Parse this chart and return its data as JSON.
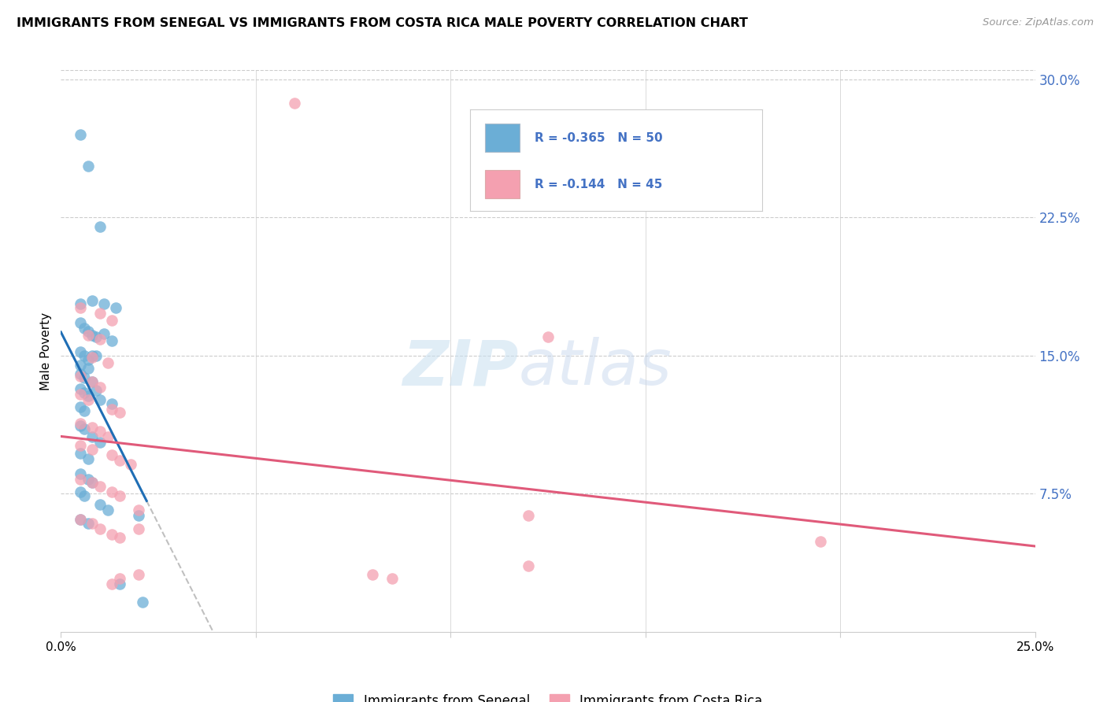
{
  "title": "IMMIGRANTS FROM SENEGAL VS IMMIGRANTS FROM COSTA RICA MALE POVERTY CORRELATION CHART",
  "source": "Source: ZipAtlas.com",
  "ylabel": "Male Poverty",
  "xlim": [
    0.0,
    0.25
  ],
  "ylim": [
    0.0,
    0.305
  ],
  "xticks": [
    0.0,
    0.05,
    0.1,
    0.15,
    0.2,
    0.25
  ],
  "xticklabels": [
    "0.0%",
    "",
    "",
    "",
    "",
    "25.0%"
  ],
  "yticks_right": [
    0.075,
    0.15,
    0.225,
    0.3
  ],
  "yticklabels_right": [
    "7.5%",
    "15.0%",
    "22.5%",
    "30.0%"
  ],
  "senegal_R": "-0.365",
  "senegal_N": "50",
  "costarica_R": "-0.144",
  "costarica_N": "45",
  "legend_label1": "Immigrants from Senegal",
  "legend_label2": "Immigrants from Costa Rica",
  "color_senegal": "#6baed6",
  "color_costarica": "#f4a0b0",
  "color_senegal_line": "#1f6eb5",
  "color_costarica_line": "#e05a7a",
  "color_grid": "#cccccc",
  "color_ytick": "#4472c4",
  "senegal_points": [
    [
      0.005,
      0.27
    ],
    [
      0.007,
      0.253
    ],
    [
      0.01,
      0.22
    ],
    [
      0.005,
      0.178
    ],
    [
      0.008,
      0.18
    ],
    [
      0.011,
      0.178
    ],
    [
      0.014,
      0.176
    ],
    [
      0.005,
      0.168
    ],
    [
      0.006,
      0.165
    ],
    [
      0.007,
      0.163
    ],
    [
      0.008,
      0.161
    ],
    [
      0.009,
      0.16
    ],
    [
      0.011,
      0.162
    ],
    [
      0.013,
      0.158
    ],
    [
      0.005,
      0.152
    ],
    [
      0.006,
      0.15
    ],
    [
      0.007,
      0.148
    ],
    [
      0.008,
      0.15
    ],
    [
      0.009,
      0.15
    ],
    [
      0.005,
      0.145
    ],
    [
      0.007,
      0.143
    ],
    [
      0.005,
      0.14
    ],
    [
      0.006,
      0.138
    ],
    [
      0.008,
      0.136
    ],
    [
      0.005,
      0.132
    ],
    [
      0.006,
      0.13
    ],
    [
      0.007,
      0.128
    ],
    [
      0.009,
      0.131
    ],
    [
      0.005,
      0.122
    ],
    [
      0.006,
      0.12
    ],
    [
      0.01,
      0.126
    ],
    [
      0.013,
      0.124
    ],
    [
      0.005,
      0.112
    ],
    [
      0.006,
      0.11
    ],
    [
      0.008,
      0.106
    ],
    [
      0.01,
      0.103
    ],
    [
      0.005,
      0.097
    ],
    [
      0.007,
      0.094
    ],
    [
      0.005,
      0.086
    ],
    [
      0.007,
      0.083
    ],
    [
      0.008,
      0.081
    ],
    [
      0.005,
      0.076
    ],
    [
      0.006,
      0.074
    ],
    [
      0.01,
      0.069
    ],
    [
      0.012,
      0.066
    ],
    [
      0.005,
      0.061
    ],
    [
      0.007,
      0.059
    ],
    [
      0.02,
      0.063
    ],
    [
      0.015,
      0.026
    ],
    [
      0.021,
      0.016
    ]
  ],
  "costarica_points": [
    [
      0.06,
      0.287
    ],
    [
      0.005,
      0.176
    ],
    [
      0.01,
      0.173
    ],
    [
      0.013,
      0.169
    ],
    [
      0.007,
      0.161
    ],
    [
      0.01,
      0.159
    ],
    [
      0.008,
      0.149
    ],
    [
      0.012,
      0.146
    ],
    [
      0.005,
      0.139
    ],
    [
      0.008,
      0.136
    ],
    [
      0.01,
      0.133
    ],
    [
      0.005,
      0.129
    ],
    [
      0.007,
      0.126
    ],
    [
      0.013,
      0.121
    ],
    [
      0.015,
      0.119
    ],
    [
      0.005,
      0.113
    ],
    [
      0.008,
      0.111
    ],
    [
      0.01,
      0.109
    ],
    [
      0.012,
      0.106
    ],
    [
      0.005,
      0.101
    ],
    [
      0.008,
      0.099
    ],
    [
      0.013,
      0.096
    ],
    [
      0.015,
      0.093
    ],
    [
      0.018,
      0.091
    ],
    [
      0.005,
      0.083
    ],
    [
      0.008,
      0.081
    ],
    [
      0.01,
      0.079
    ],
    [
      0.013,
      0.076
    ],
    [
      0.015,
      0.074
    ],
    [
      0.02,
      0.066
    ],
    [
      0.005,
      0.061
    ],
    [
      0.008,
      0.059
    ],
    [
      0.01,
      0.056
    ],
    [
      0.013,
      0.053
    ],
    [
      0.015,
      0.051
    ],
    [
      0.02,
      0.056
    ],
    [
      0.125,
      0.16
    ],
    [
      0.12,
      0.063
    ],
    [
      0.195,
      0.049
    ],
    [
      0.12,
      0.036
    ],
    [
      0.08,
      0.031
    ],
    [
      0.085,
      0.029
    ],
    [
      0.02,
      0.031
    ],
    [
      0.015,
      0.029
    ],
    [
      0.013,
      0.026
    ]
  ],
  "senegal_line_x": [
    0.003,
    0.022
  ],
  "senegal_line_y": [
    0.148,
    0.05
  ],
  "costarica_line_x": [
    0.003,
    0.25
  ],
  "costarica_line_y": [
    0.115,
    0.065
  ],
  "dashed_line_x": [
    0.022,
    0.25
  ],
  "dashed_line_y_start_offset": 0.0
}
